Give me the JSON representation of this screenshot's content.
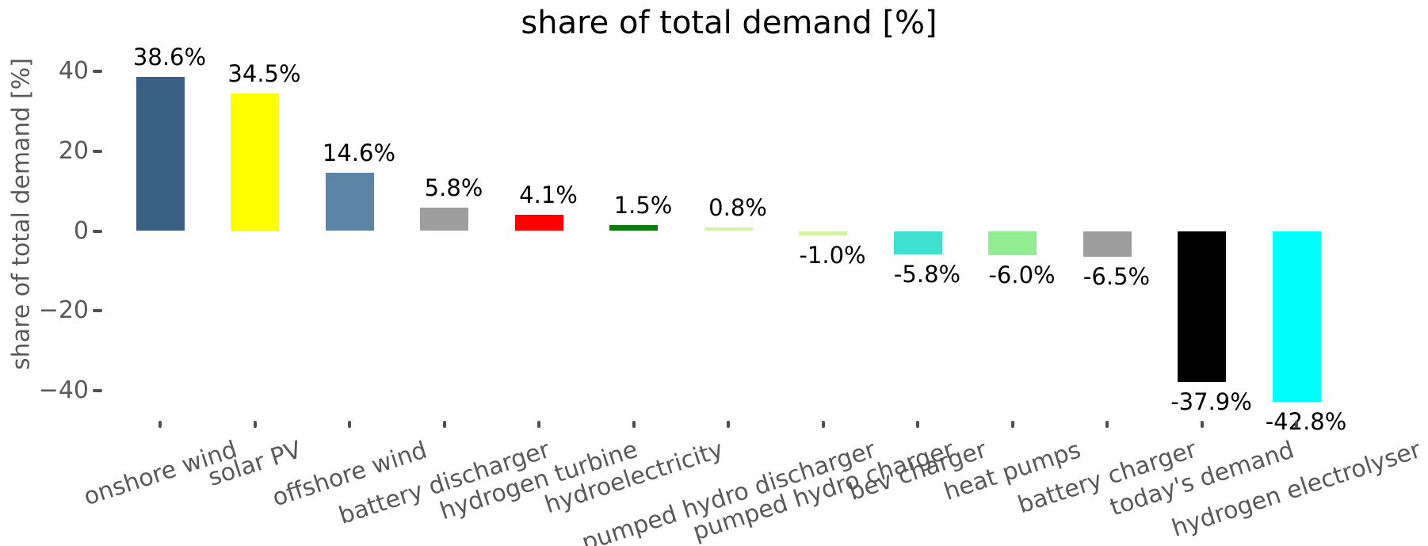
{
  "chart_data": {
    "type": "bar",
    "title": "share of total demand [%]",
    "ylabel": "share of total demand [%]",
    "xlabel": "",
    "categories": [
      "onshore wind",
      "solar PV",
      "offshore wind",
      "battery discharger",
      "hydrogen turbine",
      "hydroelectricity",
      "pumped hydro discharger",
      "pumped hydro charger",
      "bev charger",
      "heat pumps",
      "battery charger",
      "today's demand",
      "hydrogen electrolyser"
    ],
    "values": [
      38.6,
      34.5,
      14.6,
      5.8,
      4.1,
      1.5,
      0.8,
      -1.0,
      -5.8,
      -6.0,
      -6.5,
      -37.9,
      -42.8
    ],
    "bar_labels": [
      "38.6%",
      "34.5%",
      "14.6%",
      "5.8%",
      "4.1%",
      "1.5%",
      "0.8%",
      "-1.0%",
      "-5.8%",
      "-6.0%",
      "-6.5%",
      "-37.9%",
      "-42.8%"
    ],
    "bar_colors": [
      "#3A6183",
      "#FFFF00",
      "#5C84A6",
      "#9E9E9E",
      "#FF0000",
      "#0B7C0B",
      "#D5F1A3",
      "#D5F1A3",
      "#40E0D0",
      "#90EE90",
      "#9E9E9E",
      "#000000",
      "#00FFFF"
    ],
    "yticks": [
      40,
      20,
      0,
      -20,
      -40
    ],
    "ytick_labels": [
      "40",
      "20",
      "0",
      "−20",
      "−40"
    ],
    "ylim": [
      -50,
      45
    ],
    "grid": false,
    "legend": null,
    "axis_text_color": "#595959",
    "bar_label_color": "#000000",
    "background": "#ffffff",
    "x_tick_label_rotation_deg": 18
  }
}
